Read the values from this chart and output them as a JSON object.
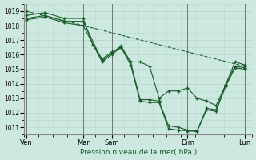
{
  "bg_color": "#cce8e0",
  "grid_color": "#b8d8d0",
  "line_color": "#1a5c2a",
  "xlabel_text": "Pression niveau de la mer( hPa )",
  "ylim": [
    1010.5,
    1019.5
  ],
  "yticks": [
    1011,
    1012,
    1013,
    1014,
    1015,
    1016,
    1017,
    1018,
    1019
  ],
  "xlim": [
    0,
    240
  ],
  "xtick_positions": [
    2,
    62,
    92,
    172,
    232
  ],
  "xtick_labels": [
    "Ven",
    "Mar",
    "Sam",
    "Dim",
    "Lun"
  ],
  "vline_positions": [
    2,
    62,
    92,
    172,
    232
  ],
  "series_dashed": {
    "x": [
      2,
      232
    ],
    "y": [
      1019.0,
      1015.2
    ]
  },
  "series_solid": [
    {
      "x": [
        2,
        22,
        42,
        62,
        72,
        82,
        92,
        102,
        112,
        122,
        132,
        142,
        152,
        162,
        172,
        182,
        192,
        202,
        212,
        222,
        232
      ],
      "y": [
        1018.7,
        1018.9,
        1018.5,
        1018.5,
        1016.7,
        1015.7,
        1016.2,
        1016.5,
        1015.5,
        1015.5,
        1015.2,
        1013.0,
        1013.5,
        1013.5,
        1013.7,
        1013.0,
        1012.8,
        1012.5,
        1013.9,
        1015.5,
        1015.3
      ]
    },
    {
      "x": [
        2,
        22,
        42,
        62,
        82,
        92,
        102,
        112,
        122,
        132,
        142,
        152,
        162,
        172,
        182,
        192,
        202,
        212,
        222,
        232
      ],
      "y": [
        1018.5,
        1018.7,
        1018.3,
        1018.3,
        1015.6,
        1016.1,
        1016.6,
        1015.5,
        1012.9,
        1012.9,
        1012.8,
        1011.1,
        1011.0,
        1010.8,
        1010.75,
        1012.3,
        1012.2,
        1013.9,
        1015.2,
        1015.1
      ]
    },
    {
      "x": [
        2,
        22,
        42,
        62,
        82,
        92,
        102,
        112,
        122,
        132,
        142,
        152,
        162,
        172,
        182,
        192,
        202,
        212,
        222,
        232
      ],
      "y": [
        1018.4,
        1018.6,
        1018.2,
        1018.0,
        1015.5,
        1016.0,
        1016.5,
        1015.3,
        1012.8,
        1012.7,
        1012.7,
        1010.9,
        1010.8,
        1010.75,
        1010.7,
        1012.2,
        1012.1,
        1013.8,
        1015.1,
        1015.0
      ]
    }
  ]
}
